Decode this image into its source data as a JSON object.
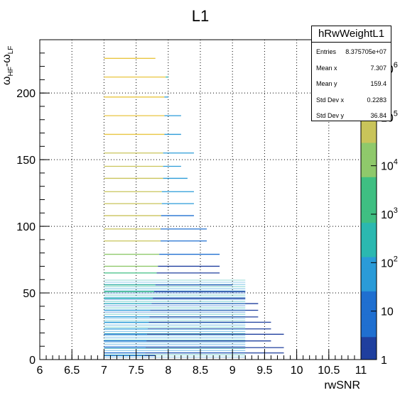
{
  "chart_data": {
    "type": "heatmap",
    "title": "L1",
    "xlabel": "rwSNR",
    "ylabel_main": "ω",
    "ylabel_sub1": "HF",
    "ylabel_mid": "-ω",
    "ylabel_sub2": "LF",
    "xlim": [
      6,
      11
    ],
    "ylim": [
      0,
      240
    ],
    "x_ticks": [
      "6",
      "6.5",
      "7",
      "7.5",
      "8",
      "8.5",
      "9",
      "9.5",
      "10",
      "10.5",
      "11"
    ],
    "y_ticks": [
      "0",
      "50",
      "100",
      "150",
      "200"
    ],
    "color_scale": "log",
    "color_ticks_main": [
      "1",
      "10",
      "10",
      "10",
      "10",
      "10",
      "10"
    ],
    "color_tick_exponents": [
      "",
      "",
      "2",
      "3",
      "4",
      "5",
      "6"
    ],
    "grid": true,
    "rows": [
      {
        "y": 226,
        "xmax": 7.8,
        "level": 0.9
      },
      {
        "y": 212,
        "xmax": 8.0,
        "level": 0.9
      },
      {
        "y": 197,
        "xmax": 8.0,
        "level": 0.85
      },
      {
        "y": 183,
        "xmax": 8.2,
        "level": 0.85
      },
      {
        "y": 169,
        "xmax": 8.2,
        "level": 0.85
      },
      {
        "y": 155,
        "xmax": 8.4,
        "level": 0.8
      },
      {
        "y": 145,
        "xmax": 8.2,
        "level": 0.8
      },
      {
        "y": 136,
        "xmax": 8.3,
        "level": 0.8
      },
      {
        "y": 126,
        "xmax": 8.4,
        "level": 0.75
      },
      {
        "y": 117,
        "xmax": 8.4,
        "level": 0.75
      },
      {
        "y": 108,
        "xmax": 8.4,
        "level": 0.72
      },
      {
        "y": 98,
        "xmax": 8.6,
        "level": 0.7
      },
      {
        "y": 89,
        "xmax": 8.6,
        "level": 0.7
      },
      {
        "y": 79,
        "xmax": 8.8,
        "level": 0.65
      },
      {
        "y": 70,
        "xmax": 8.8,
        "level": 0.6
      },
      {
        "y": 65,
        "xmax": 8.8,
        "level": 0.55
      },
      {
        "y": 56,
        "xmax": 9.0,
        "level": 0.5
      },
      {
        "y": 51,
        "xmax": 9.2,
        "level": 0.45
      },
      {
        "y": 46,
        "xmax": 9.2,
        "level": 0.4
      },
      {
        "y": 42,
        "xmax": 9.4,
        "level": 0.35
      },
      {
        "y": 37,
        "xmax": 9.4,
        "level": 0.3
      },
      {
        "y": 32,
        "xmax": 9.4,
        "level": 0.27
      },
      {
        "y": 28,
        "xmax": 9.6,
        "level": 0.24
      },
      {
        "y": 23,
        "xmax": 9.6,
        "level": 0.2
      },
      {
        "y": 19,
        "xmax": 9.8,
        "level": 0.17
      },
      {
        "y": 14,
        "xmax": 9.6,
        "level": 0.15
      },
      {
        "y": 9,
        "xmax": 9.8,
        "level": 0.12
      },
      {
        "y": 5,
        "xmax": 9.8,
        "level": 0.1
      },
      {
        "y": 3,
        "xmax": 7.8,
        "level": 0.08
      }
    ],
    "palette": [
      "#1f3f9e",
      "#1f6fd0",
      "#2a9bd8",
      "#2bb8b0",
      "#3fbf82",
      "#8fc96b",
      "#c9c45a",
      "#e9c640",
      "#f7e22a"
    ]
  },
  "stats": {
    "title": "hRwWeightL1",
    "entries": [
      {
        "key": "Entries",
        "value": "8.375705e+07"
      },
      {
        "key": "Mean x",
        "value": "7.307"
      },
      {
        "key": "Mean y",
        "value": "159.4"
      },
      {
        "key": "Std Dev x",
        "value": "0.2283"
      },
      {
        "key": "Std Dev y",
        "value": "36.84"
      }
    ]
  }
}
